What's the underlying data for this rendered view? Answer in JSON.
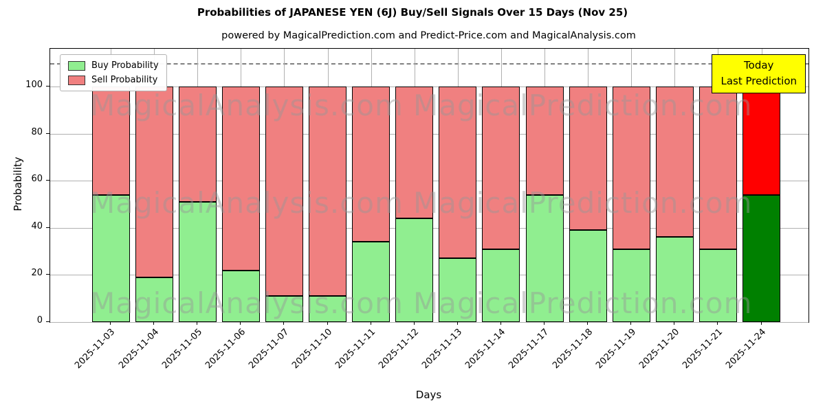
{
  "chart_data": {
    "type": "bar",
    "stacked": true,
    "title": "Probabilities of JAPANESE YEN (6J) Buy/Sell Signals Over 15 Days (Nov 25)",
    "subtitle": "powered by MagicalPrediction.com and Predict-Price.com and MagicalAnalysis.com",
    "xlabel": "Days",
    "ylabel": "Probability",
    "categories": [
      "2025-11-03",
      "2025-11-04",
      "2025-11-05",
      "2025-11-06",
      "2025-11-07",
      "2025-11-10",
      "2025-11-11",
      "2025-11-12",
      "2025-11-13",
      "2025-11-14",
      "2025-11-17",
      "2025-11-18",
      "2025-11-19",
      "2025-11-20",
      "2025-11-21",
      "2025-11-24"
    ],
    "series": [
      {
        "name": "Buy Probability",
        "color": "#90ee90",
        "values": [
          54,
          19,
          51,
          22,
          11,
          11,
          34,
          44,
          27,
          31,
          54,
          39,
          31,
          36,
          31,
          54
        ]
      },
      {
        "name": "Sell Probability",
        "color": "#f08080",
        "values": [
          46,
          81,
          49,
          78,
          89,
          89,
          66,
          56,
          73,
          69,
          46,
          61,
          69,
          64,
          69,
          46
        ]
      }
    ],
    "last_bar_colors": {
      "buy": "#008000",
      "sell": "#ff0000"
    },
    "yticks": [
      0,
      20,
      40,
      60,
      80,
      100
    ],
    "ylim": [
      0,
      116
    ],
    "dashed_line_y": 110,
    "grid": true,
    "legend_position": "upper left"
  },
  "annotation": {
    "line1": "Today",
    "line2": "Last Prediction",
    "bg": "#ffff00"
  },
  "watermarks": [
    "MagicalAnalysis.com",
    "MagicalPrediction.com"
  ]
}
